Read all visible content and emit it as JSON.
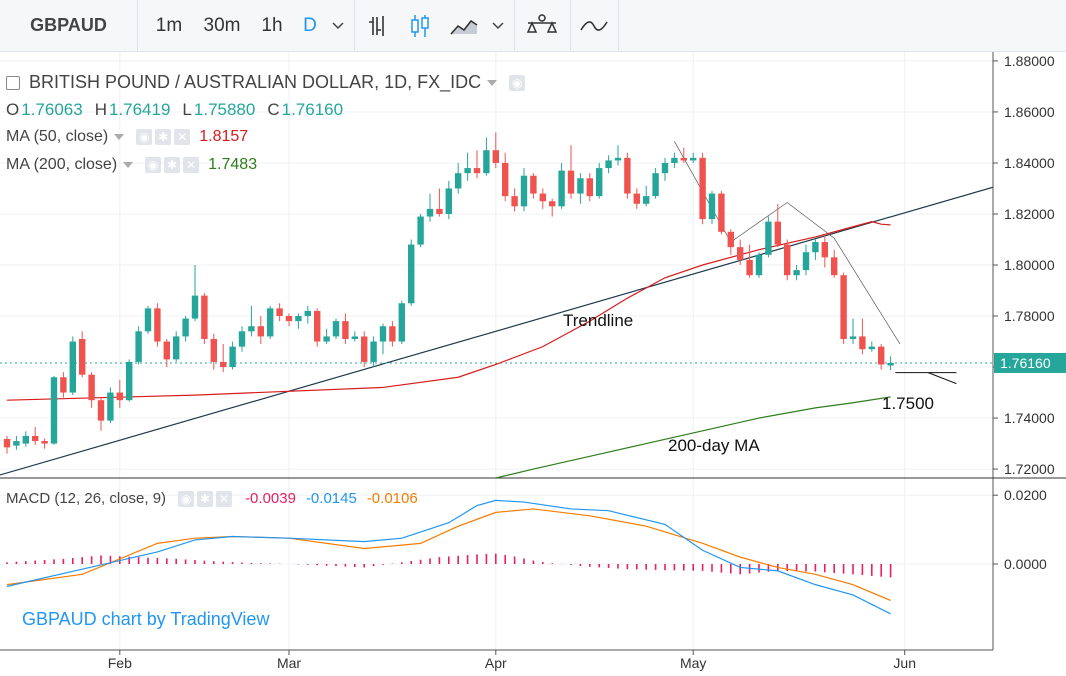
{
  "toolbar": {
    "symbol": "GBPAUD",
    "intervals": [
      "1m",
      "30m",
      "1h",
      "D"
    ],
    "active_interval": "D",
    "icons": [
      "chevron-down-icon",
      "bar-chart-icon",
      "candlestick-icon",
      "area-chart-icon",
      "chevron-down-icon",
      "compare-icon",
      "indicator-icon"
    ]
  },
  "legend": {
    "title": "BRITISH POUND / AUSTRALIAN DOLLAR, 1D, FX_IDC",
    "ohlc": [
      {
        "label": "O",
        "value": "1.76063"
      },
      {
        "label": "H",
        "value": "1.76419"
      },
      {
        "label": "L",
        "value": "1.75880"
      },
      {
        "label": "C",
        "value": "1.76160"
      }
    ],
    "ma50": {
      "label": "MA (50, close)",
      "value": "1.8157"
    },
    "ma200": {
      "label": "MA (200, close)",
      "value": "1.7483"
    },
    "macd": {
      "label": "MACD (12, 26, close, 9)",
      "hist": "-0.0039",
      "macd": "-0.0145",
      "signal": "-0.0106"
    }
  },
  "annotations": {
    "trendline": "Trendline",
    "level": "1.7500",
    "ma200": "200-day MA"
  },
  "watermark": "GBPAUD chart by TradingView",
  "price_tag": "1.76160",
  "colors": {
    "up": "#26a69a",
    "down": "#ef5350",
    "ma50": "#d81b1b",
    "ma200": "#2e7d1a",
    "macd": "#2196f3",
    "signal": "#f57c00",
    "hist": "#e91e63",
    "trend": "#1f3a4d",
    "accent": "#2196f3"
  },
  "chart_data": [
    {
      "type": "candlestick",
      "title": "BRITISH POUND / AUSTRALIAN DOLLAR, 1D, FX_IDC",
      "ylim": [
        1.7165,
        1.8835
      ],
      "y_ticks": [
        "1.88000",
        "1.86000",
        "1.84000",
        "1.82000",
        "1.80000",
        "1.78000",
        "1.76000",
        "1.74000",
        "1.72000"
      ],
      "x_ticks": [
        "Feb",
        "Mar",
        "Apr",
        "May",
        "Jun"
      ],
      "candles": [
        [
          1.7318,
          1.733,
          1.726,
          1.7285
        ],
        [
          1.7292,
          1.733,
          1.7275,
          1.731
        ],
        [
          1.73,
          1.7348,
          1.7288,
          1.733
        ],
        [
          1.733,
          1.7365,
          1.7295,
          1.731
        ],
        [
          1.731,
          1.732,
          1.728,
          1.73
        ],
        [
          1.73,
          1.7565,
          1.7295,
          1.756
        ],
        [
          1.756,
          1.758,
          1.748,
          1.75
        ],
        [
          1.75,
          1.772,
          1.749,
          1.77
        ],
        [
          1.771,
          1.774,
          1.756,
          1.757
        ],
        [
          1.757,
          1.758,
          1.744,
          1.747
        ],
        [
          1.747,
          1.748,
          1.735,
          1.739
        ],
        [
          1.739,
          1.752,
          1.738,
          1.75
        ],
        [
          1.75,
          1.755,
          1.744,
          1.747
        ],
        [
          1.747,
          1.763,
          1.7465,
          1.762
        ],
        [
          1.762,
          1.776,
          1.761,
          1.774
        ],
        [
          1.774,
          1.784,
          1.773,
          1.783
        ],
        [
          1.783,
          1.785,
          1.768,
          1.77
        ],
        [
          1.77,
          1.771,
          1.76,
          1.763
        ],
        [
          1.763,
          1.774,
          1.762,
          1.772
        ],
        [
          1.772,
          1.78,
          1.77,
          1.779
        ],
        [
          1.779,
          1.8,
          1.778,
          1.788
        ],
        [
          1.788,
          1.789,
          1.769,
          1.771
        ],
        [
          1.771,
          1.773,
          1.759,
          1.762
        ],
        [
          1.762,
          1.769,
          1.758,
          1.76
        ],
        [
          1.76,
          1.77,
          1.759,
          1.768
        ],
        [
          1.768,
          1.776,
          1.766,
          1.774
        ],
        [
          1.774,
          1.784,
          1.772,
          1.776
        ],
        [
          1.776,
          1.78,
          1.769,
          1.772
        ],
        [
          1.772,
          1.784,
          1.771,
          1.783
        ],
        [
          1.783,
          1.785,
          1.778,
          1.78
        ],
        [
          1.78,
          1.781,
          1.776,
          1.778
        ],
        [
          1.778,
          1.781,
          1.775,
          1.78
        ],
        [
          1.78,
          1.784,
          1.777,
          1.782
        ],
        [
          1.782,
          1.783,
          1.768,
          1.77
        ],
        [
          1.77,
          1.775,
          1.769,
          1.772
        ],
        [
          1.772,
          1.779,
          1.771,
          1.778
        ],
        [
          1.778,
          1.781,
          1.769,
          1.771
        ],
        [
          1.771,
          1.774,
          1.77,
          1.772
        ],
        [
          1.772,
          1.774,
          1.76,
          1.762
        ],
        [
          1.762,
          1.772,
          1.76,
          1.77
        ],
        [
          1.77,
          1.777,
          1.765,
          1.776
        ],
        [
          1.776,
          1.778,
          1.768,
          1.77
        ],
        [
          1.77,
          1.786,
          1.769,
          1.785
        ],
        [
          1.785,
          1.81,
          1.784,
          1.808
        ],
        [
          1.808,
          1.82,
          1.807,
          1.819
        ],
        [
          1.819,
          1.828,
          1.817,
          1.822
        ],
        [
          1.822,
          1.83,
          1.819,
          1.82
        ],
        [
          1.82,
          1.833,
          1.818,
          1.83
        ],
        [
          1.83,
          1.84,
          1.828,
          1.836
        ],
        [
          1.836,
          1.844,
          1.833,
          1.838
        ],
        [
          1.838,
          1.845,
          1.834,
          1.836
        ],
        [
          1.836,
          1.85,
          1.835,
          1.845
        ],
        [
          1.845,
          1.852,
          1.838,
          1.84
        ],
        [
          1.84,
          1.844,
          1.825,
          1.827
        ],
        [
          1.827,
          1.83,
          1.821,
          1.823
        ],
        [
          1.823,
          1.838,
          1.821,
          1.835
        ],
        [
          1.835,
          1.836,
          1.826,
          1.828
        ],
        [
          1.828,
          1.83,
          1.822,
          1.825
        ],
        [
          1.825,
          1.826,
          1.819,
          1.823
        ],
        [
          1.823,
          1.84,
          1.822,
          1.837
        ],
        [
          1.837,
          1.847,
          1.826,
          1.828
        ],
        [
          1.828,
          1.836,
          1.824,
          1.834
        ],
        [
          1.834,
          1.836,
          1.825,
          1.827
        ],
        [
          1.827,
          1.84,
          1.826,
          1.838
        ],
        [
          1.838,
          1.843,
          1.836,
          1.841
        ],
        [
          1.841,
          1.847,
          1.839,
          1.842
        ],
        [
          1.842,
          1.844,
          1.826,
          1.828
        ],
        [
          1.828,
          1.83,
          1.822,
          1.824
        ],
        [
          1.824,
          1.831,
          1.823,
          1.827
        ],
        [
          1.827,
          1.838,
          1.826,
          1.836
        ],
        [
          1.836,
          1.842,
          1.833,
          1.84
        ],
        [
          1.84,
          1.844,
          1.838,
          1.842
        ],
        [
          1.842,
          1.846,
          1.84,
          1.841
        ],
        [
          1.841,
          1.844,
          1.84,
          1.842
        ],
        [
          1.842,
          1.844,
          1.816,
          1.818
        ],
        [
          1.818,
          1.829,
          1.816,
          1.828
        ],
        [
          1.828,
          1.829,
          1.812,
          1.813
        ],
        [
          1.813,
          1.814,
          1.804,
          1.807
        ],
        [
          1.807,
          1.81,
          1.8,
          1.802
        ],
        [
          1.802,
          1.808,
          1.795,
          1.796
        ],
        [
          1.796,
          1.805,
          1.795,
          1.804
        ],
        [
          1.804,
          1.819,
          1.803,
          1.817
        ],
        [
          1.817,
          1.824,
          1.807,
          1.808
        ],
        [
          1.808,
          1.81,
          1.794,
          1.796
        ],
        [
          1.796,
          1.8,
          1.794,
          1.798
        ],
        [
          1.798,
          1.808,
          1.796,
          1.805
        ],
        [
          1.805,
          1.81,
          1.802,
          1.809
        ],
        [
          1.809,
          1.812,
          1.799,
          1.803
        ],
        [
          1.803,
          1.806,
          1.795,
          1.796
        ],
        [
          1.796,
          1.797,
          1.769,
          1.771
        ],
        [
          1.771,
          1.779,
          1.769,
          1.772
        ],
        [
          1.772,
          1.779,
          1.765,
          1.767
        ],
        [
          1.767,
          1.77,
          1.766,
          1.768
        ],
        [
          1.768,
          1.769,
          1.759,
          1.761
        ],
        [
          1.7606,
          1.7642,
          1.7588,
          1.7616
        ]
      ],
      "series": [
        {
          "name": "MA (50, close)",
          "values": [
            [
              0,
              1.747
            ],
            [
              20,
              1.749
            ],
            [
              40,
              1.752
            ],
            [
              48,
              1.756
            ],
            [
              52,
              1.761
            ],
            [
              57,
              1.768
            ],
            [
              62,
              1.778
            ],
            [
              66,
              1.787
            ],
            [
              70,
              1.795
            ],
            [
              74,
              1.8
            ],
            [
              80,
              1.806
            ],
            [
              86,
              1.811
            ],
            [
              90,
              1.815
            ],
            [
              92,
              1.817
            ],
            [
              93,
              1.816
            ],
            [
              94,
              1.8157
            ]
          ]
        },
        {
          "name": "MA (200, close)",
          "values": [
            [
              52,
              1.7165
            ],
            [
              56,
              1.72
            ],
            [
              62,
              1.725
            ],
            [
              68,
              1.73
            ],
            [
              74,
              1.735
            ],
            [
              80,
              1.74
            ],
            [
              86,
              1.744
            ],
            [
              90,
              1.746
            ],
            [
              94,
              1.7483
            ]
          ]
        }
      ]
    },
    {
      "type": "line",
      "title": "MACD (12, 26, close, 9)",
      "ylim": [
        -0.025,
        0.025
      ],
      "y_ticks": [
        "0.0200",
        "0.0000"
      ],
      "series": [
        {
          "name": "MACD",
          "values": [
            [
              0,
              -0.0065
            ],
            [
              8,
              -0.0015
            ],
            [
              16,
              0.0035
            ],
            [
              20,
              0.007
            ],
            [
              24,
              0.008
            ],
            [
              30,
              0.0075
            ],
            [
              38,
              0.0065
            ],
            [
              42,
              0.0075
            ],
            [
              47,
              0.012
            ],
            [
              50,
              0.017
            ],
            [
              52,
              0.0185
            ],
            [
              55,
              0.018
            ],
            [
              60,
              0.016
            ],
            [
              64,
              0.0155
            ],
            [
              70,
              0.0115
            ],
            [
              74,
              0.004
            ],
            [
              78,
              -0.001
            ],
            [
              82,
              -0.002
            ],
            [
              86,
              -0.006
            ],
            [
              90,
              -0.009
            ],
            [
              94,
              -0.0145
            ]
          ]
        },
        {
          "name": "Signal",
          "values": [
            [
              0,
              -0.006
            ],
            [
              8,
              -0.003
            ],
            [
              16,
              0.006
            ],
            [
              20,
              0.0075
            ],
            [
              24,
              0.008
            ],
            [
              30,
              0.0075
            ],
            [
              38,
              0.0045
            ],
            [
              44,
              0.006
            ],
            [
              48,
              0.011
            ],
            [
              52,
              0.015
            ],
            [
              56,
              0.016
            ],
            [
              62,
              0.014
            ],
            [
              68,
              0.011
            ],
            [
              74,
              0.006
            ],
            [
              78,
              0.002
            ],
            [
              82,
              -0.001
            ],
            [
              86,
              -0.003
            ],
            [
              90,
              -0.006
            ],
            [
              94,
              -0.0106
            ]
          ]
        },
        {
          "name": "Histogram",
          "values": [
            [
              0,
              0.0005
            ],
            [
              6,
              0.0015
            ],
            [
              10,
              0.0025
            ],
            [
              14,
              0.002
            ],
            [
              18,
              0.0015
            ],
            [
              22,
              0.0008
            ],
            [
              26,
              0.0003
            ],
            [
              30,
              0.0
            ],
            [
              34,
              -0.0005
            ],
            [
              38,
              -0.001
            ],
            [
              42,
              0.0005
            ],
            [
              46,
              0.002
            ],
            [
              50,
              0.0028
            ],
            [
              52,
              0.003
            ],
            [
              54,
              0.0022
            ],
            [
              56,
              0.001
            ],
            [
              58,
              0.0002
            ],
            [
              62,
              -0.0008
            ],
            [
              66,
              -0.0015
            ],
            [
              70,
              -0.0018
            ],
            [
              74,
              -0.002
            ],
            [
              76,
              -0.0025
            ],
            [
              78,
              -0.003
            ],
            [
              80,
              -0.0025
            ],
            [
              82,
              -0.002
            ],
            [
              86,
              -0.0022
            ],
            [
              90,
              -0.003
            ],
            [
              94,
              -0.0039
            ]
          ]
        }
      ]
    }
  ]
}
